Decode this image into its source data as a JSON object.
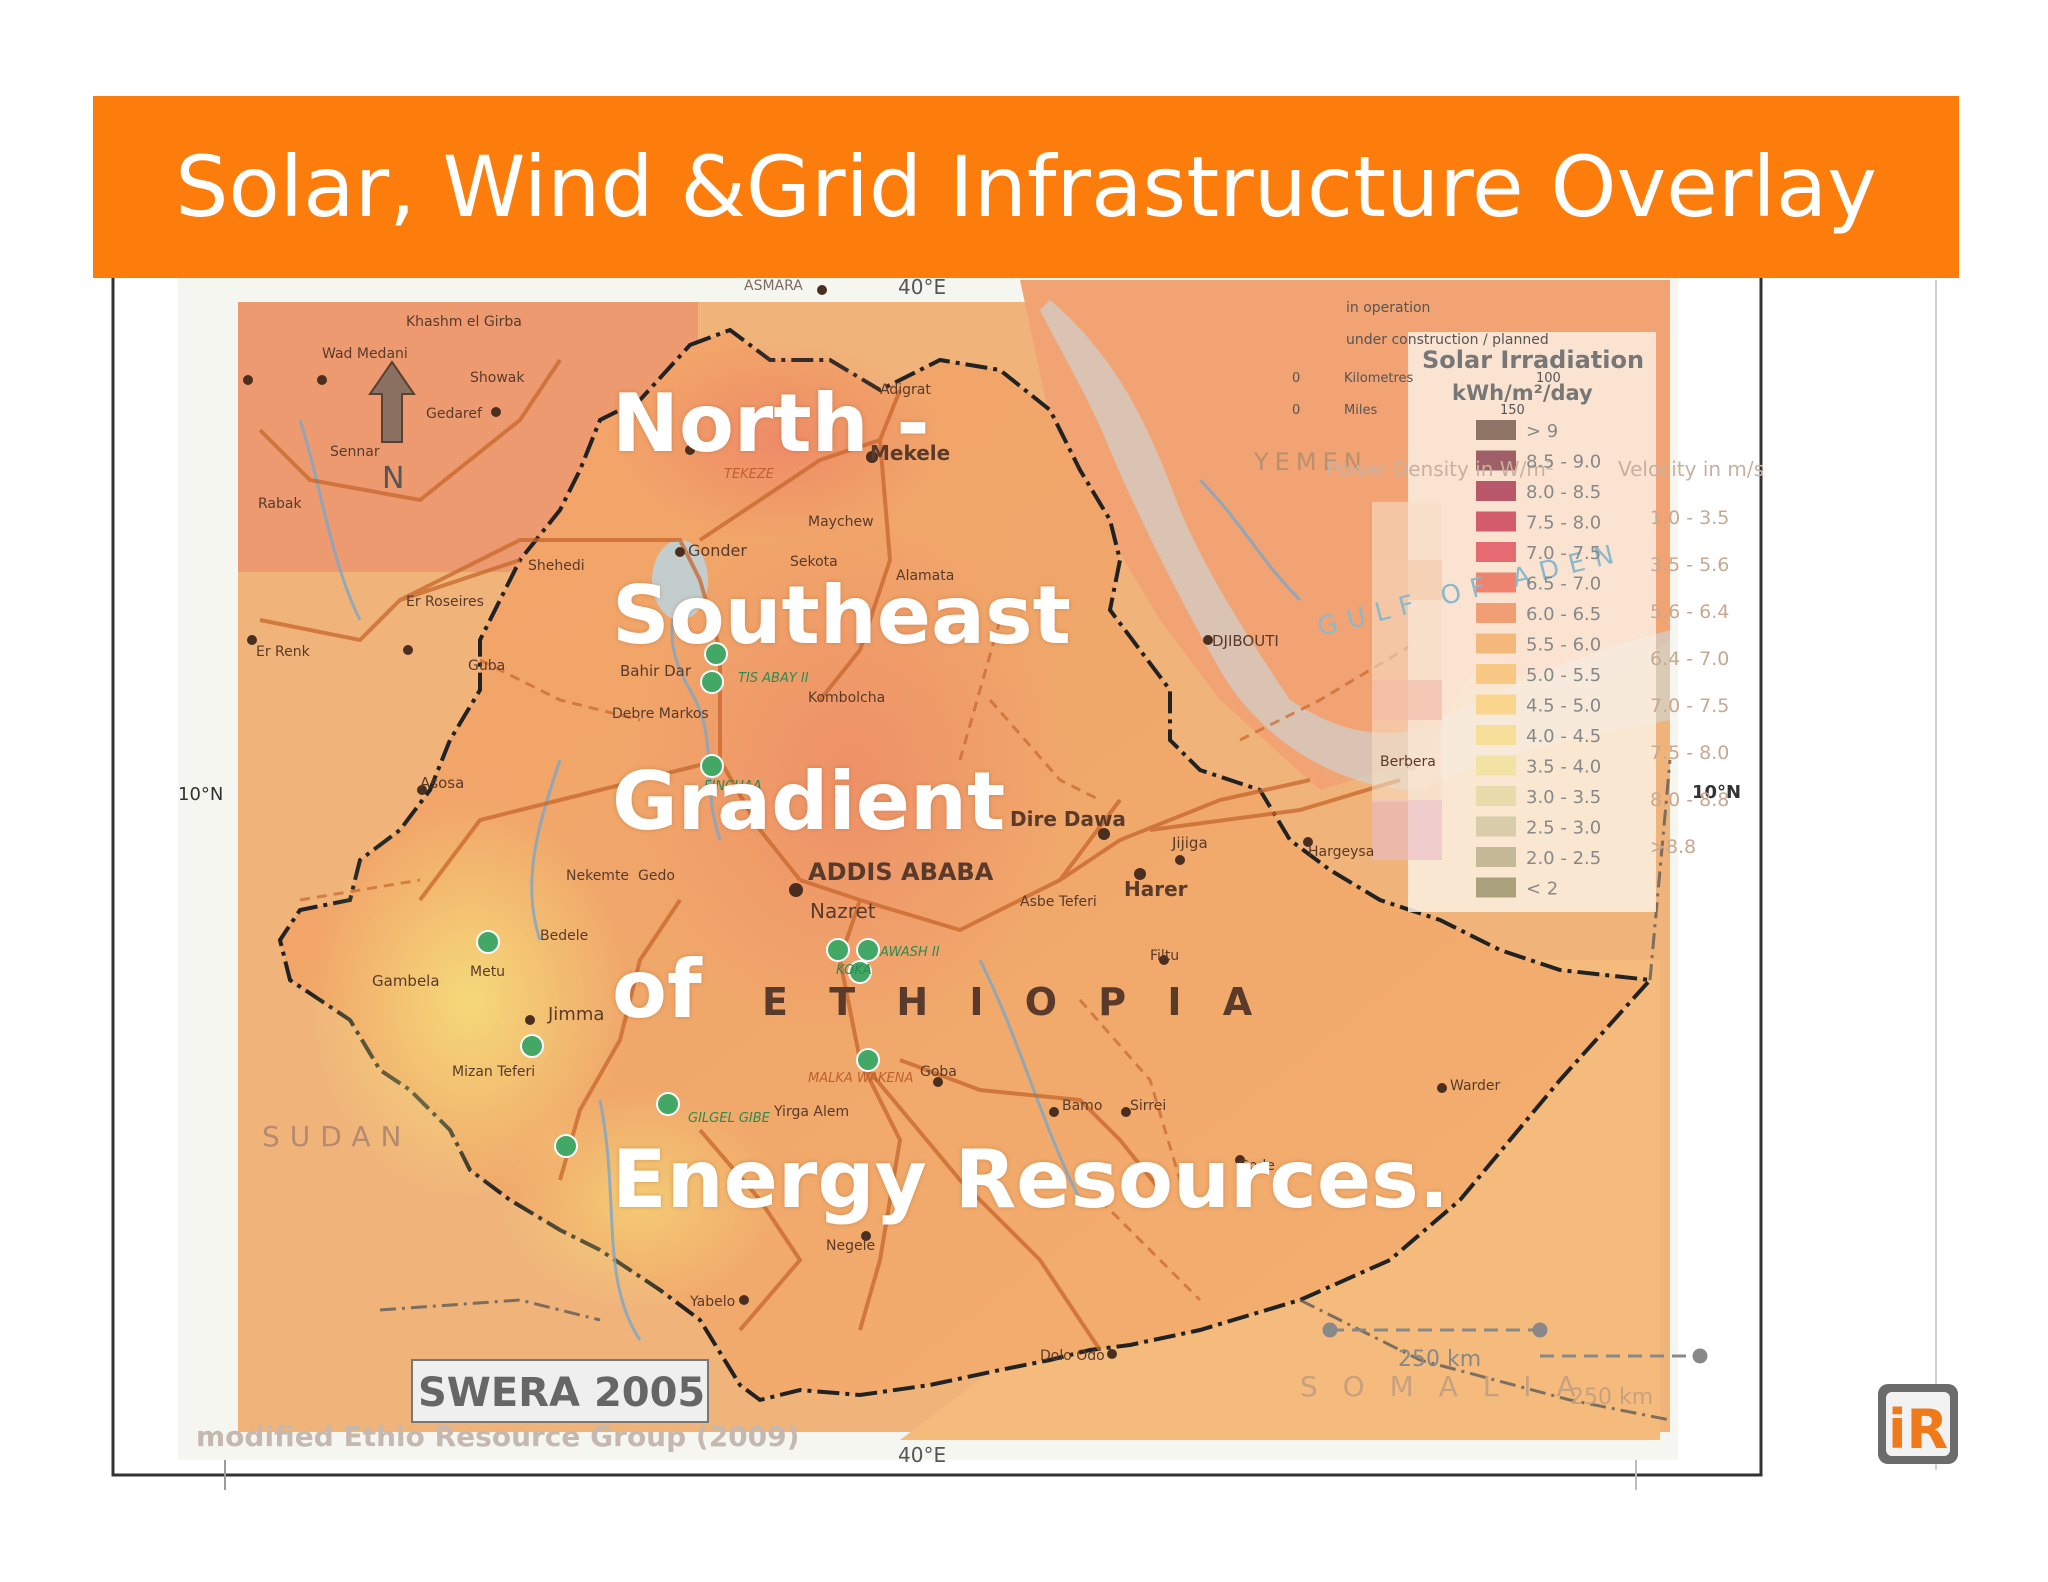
{
  "slide": {
    "title": "Solar, Wind &Grid Infrastructure Overlay",
    "overlay_lines": [
      "North -",
      "Southeast",
      "Gradient",
      "of",
      "Energy Resources."
    ]
  },
  "map": {
    "country_label": "E T H I O P I A",
    "neighbors": {
      "sudan": "SUDAN",
      "somalia": "S O M A L I A",
      "yemen": "YEMEN",
      "gulf": "GULF OF ADEN"
    },
    "cities": {
      "addis": "ADDIS ABABA",
      "mekele": "Mekele",
      "dire_dawa": "Dire Dawa",
      "harer": "Harer",
      "nazret": "Nazret",
      "jimma": "Jimma",
      "gonder": "Gonder",
      "bahir_dar": "Bahir Dar",
      "asosa": "Asosa",
      "gambela": "Gambela",
      "djibouti": "DJIBOUTI",
      "berbera": "Berbera",
      "hargeysa": "Hargeysa",
      "jijiga": "Jijiga",
      "goba": "Goba",
      "warder": "Warder",
      "gode": "Gode",
      "yabelo": "Yabelo",
      "negele": "Negele",
      "dolo": "Dolo Odo",
      "asmara": "ASMARA",
      "kombolcha": "Kombolcha",
      "mizan": "Mizan Teferi",
      "metu": "Metu",
      "nekemte": "Nekemte",
      "debre_markos": "Debre Markos",
      "adigrat": "Adigrat",
      "maychew": "Maychew",
      "alamata": "Alamata",
      "sekota": "Sekota",
      "shehedi": "Shehedi",
      "er_roseires": "Er Roseires",
      "er_renk": "Er Renk",
      "sennar": "Sennar",
      "rabak": "Rabak",
      "wad_medani": "Wad Medani",
      "khashm": "Khashm el Girba",
      "showak": "Showak",
      "gedaref": "Gedaref",
      "guba": "Guba",
      "bedele": "Bedele",
      "asbe_teferi": "Asbe Teferi",
      "bamo": "Bamo",
      "sirrei": "Sirrei",
      "yirga_alem": "Yirga Alem",
      "gedo": "Gedo",
      "filtu": "Filtu"
    },
    "plants": {
      "tekeze": "TEKEZE",
      "tis_abay": "TIS ABAY II",
      "awash": "AWASH II",
      "koka": "KOKA",
      "gilgel": "GILGEL GIBE",
      "malka": "MALKA WAKENA",
      "finchaa": "FINCHAA"
    },
    "lat_label_left": "10°N",
    "lat_label_right": "10°N",
    "lon_label_top": "40°E",
    "lon_label_bottom": "40°E",
    "north_label": "N",
    "lines_legend": {
      "in_operation": "in operation",
      "planned": "under construction / planned"
    },
    "scale": {
      "kilometres": "Kilometres",
      "miles": "Miles",
      "k0": "0",
      "k100": "100",
      "m0": "0",
      "m150": "150"
    },
    "scale_bar": {
      "label1": "250 km",
      "label2": "250 km"
    },
    "credit": "SWERA 2005",
    "source": "modified Ethio Resource Group (2009)"
  },
  "legend": {
    "title": "Solar Irradiation",
    "unit": "kWh/m²/day",
    "power_density_header": "Power Density in W/m²",
    "velocity_header": "Velocity in m/s",
    "items": [
      {
        "label": "> 9",
        "color": "#8e7466"
      },
      {
        "label": "8.5 - 9.0",
        "color": "#9e5f66"
      },
      {
        "label": "8.0 - 8.5",
        "color": "#b9586a"
      },
      {
        "label": "7.5 - 8.0",
        "color": "#d25c6c"
      },
      {
        "label": "7.0 - 7.5",
        "color": "#e66a72"
      },
      {
        "label": "6.5 - 7.0",
        "color": "#ee8470"
      },
      {
        "label": "6.0 - 6.5",
        "color": "#f29e74"
      },
      {
        "label": "5.5 - 6.0",
        "color": "#f5b87c"
      },
      {
        "label": "5.0 - 5.5",
        "color": "#f8c884"
      },
      {
        "label": "4.5 - 5.0",
        "color": "#f9d58e"
      },
      {
        "label": "4.0 - 4.5",
        "color": "#f7de98"
      },
      {
        "label": "3.5 - 4.0",
        "color": "#f2e2a4"
      },
      {
        "label": "3.0 - 3.5",
        "color": "#e8dcac"
      },
      {
        "label": "2.5 - 3.0",
        "color": "#d8ccaa"
      },
      {
        "label": "2.0 - 2.5",
        "color": "#c4b896"
      },
      {
        "label": "< 2",
        "color": "#aaa07c"
      }
    ],
    "velocity": [
      "1.0 - 3.5",
      "3.5 - 5.6",
      "5.6 - 6.4",
      "6.4 - 7.0",
      "7.0 - 7.5",
      "7.5 - 8.0",
      "8.0 - 8.8",
      ">8.8"
    ]
  },
  "logo": "iR"
}
